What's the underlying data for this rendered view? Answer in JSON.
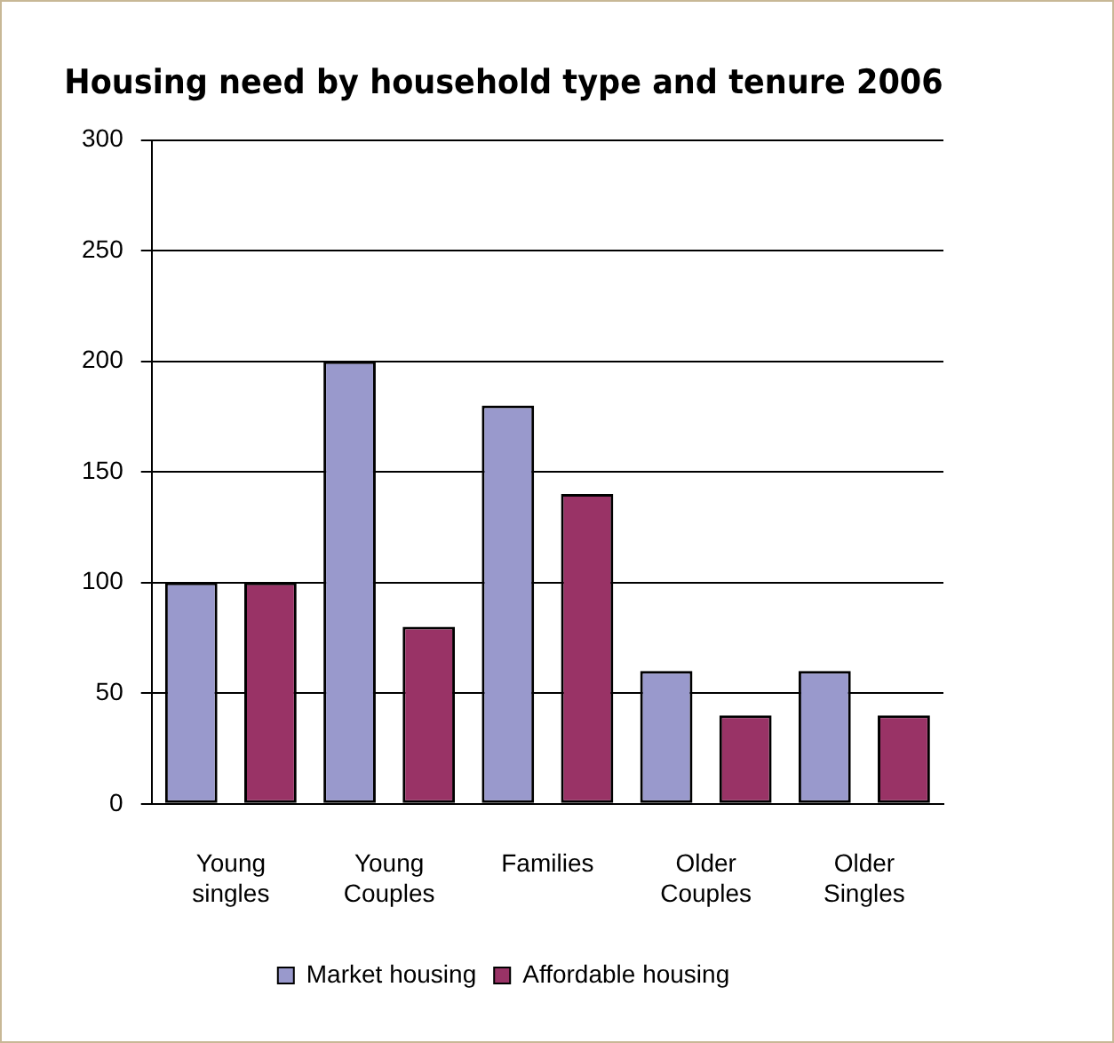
{
  "chart_data": {
    "type": "bar",
    "title": "Housing need by household type and tenure 2006",
    "categories": [
      [
        "Young",
        "singles"
      ],
      [
        "Young",
        "Couples"
      ],
      [
        "Families"
      ],
      [
        "Older",
        "Couples"
      ],
      [
        "Older",
        "Singles"
      ]
    ],
    "series": [
      {
        "name": "Market housing",
        "color": "#9999cc",
        "values": [
          100,
          200,
          180,
          60,
          60
        ]
      },
      {
        "name": "Affordable housing",
        "color": "#993366",
        "values": [
          100,
          80,
          140,
          40,
          40
        ]
      }
    ],
    "ylim": [
      0,
      300
    ],
    "yticks": [
      0,
      50,
      100,
      150,
      200,
      250,
      300
    ],
    "grid": "y",
    "legend": "bottom"
  }
}
